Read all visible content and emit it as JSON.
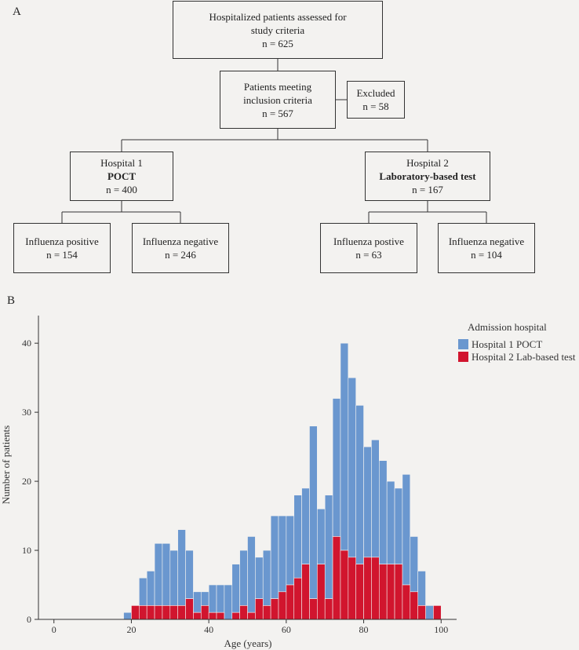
{
  "panel_a": {
    "label": "A",
    "boxes": {
      "assessed": {
        "line1": "Hospitalized patients assessed for",
        "line2": "study criteria",
        "line3": "n = 625"
      },
      "included": {
        "line1": "Patients meeting",
        "line2": "inclusion criteria",
        "line3": "n = 567"
      },
      "excluded": {
        "line1": "Excluded",
        "line2": "n = 58"
      },
      "hospital1": {
        "line1": "Hospital 1",
        "line2": "POCT",
        "line3": "n = 400"
      },
      "hospital2": {
        "line1": "Hospital 2",
        "line2": "Laboratory-based test",
        "line3": "n = 167"
      },
      "h1_pos": {
        "line1": "Influenza positive",
        "line2": "n = 154"
      },
      "h1_neg": {
        "line1": "Influenza negative",
        "line2": "n = 246"
      },
      "h2_pos": {
        "line1": "Influenza postive",
        "line2": "n = 63"
      },
      "h2_neg": {
        "line1": "Influenza negative",
        "line2": "n = 104"
      }
    }
  },
  "panel_b": {
    "label": "B"
  },
  "colors": {
    "hospital1": "#6a97cf",
    "hospital2": "#d1152e",
    "axis": "#333333"
  },
  "chart_data": {
    "type": "bar",
    "stacked": true,
    "xlabel": "Age (years)",
    "ylabel": "Number of patients",
    "xlim": [
      -4,
      104
    ],
    "ylim": [
      0,
      44
    ],
    "xticks": [
      0,
      20,
      40,
      60,
      80,
      100
    ],
    "yticks": [
      0,
      10,
      20,
      30,
      40
    ],
    "bin_width": 2,
    "legend": {
      "title": "Admission hospital",
      "position": "top-right",
      "entries": [
        "Hospital 1 POCT",
        "Hospital 2 Lab-based test"
      ]
    },
    "bins": [
      18,
      20,
      22,
      24,
      26,
      28,
      30,
      32,
      34,
      36,
      38,
      40,
      42,
      44,
      46,
      48,
      50,
      52,
      54,
      56,
      58,
      60,
      62,
      64,
      66,
      68,
      70,
      72,
      74,
      76,
      78,
      80,
      82,
      84,
      86,
      88,
      90,
      92,
      94,
      96,
      98
    ],
    "series": [
      {
        "name": "Hospital 2 Lab-based test",
        "values": [
          0,
          2,
          2,
          2,
          2,
          2,
          2,
          2,
          3,
          1,
          2,
          1,
          1,
          0,
          1,
          2,
          1,
          3,
          2,
          3,
          4,
          5,
          6,
          8,
          3,
          8,
          3,
          12,
          10,
          9,
          8,
          9,
          9,
          8,
          8,
          8,
          5,
          4,
          2,
          0,
          2
        ]
      },
      {
        "name": "Hospital 1 POCT",
        "values": [
          1,
          0,
          4,
          5,
          9,
          9,
          8,
          11,
          7,
          3,
          2,
          4,
          4,
          5,
          7,
          8,
          11,
          6,
          8,
          12,
          11,
          10,
          12,
          11,
          25,
          8,
          15,
          20,
          30,
          26,
          23,
          16,
          17,
          15,
          12,
          11,
          16,
          8,
          5,
          2,
          0
        ]
      }
    ]
  }
}
